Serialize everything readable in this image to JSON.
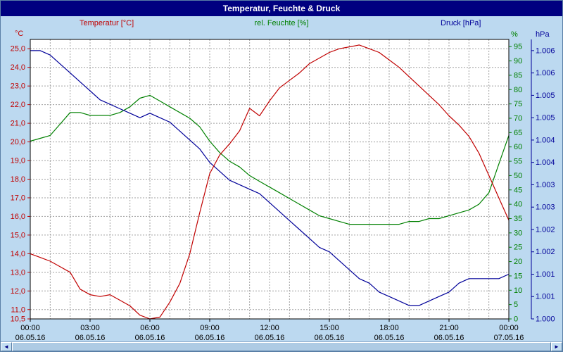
{
  "window": {
    "title": "Temperatur, Feuchte & Druck"
  },
  "legend": {
    "temperature": "Temperatur [°C]",
    "humidity": "rel. Feuchte [%]",
    "pressure": "Druck [hPa]"
  },
  "scrollbar": {
    "left_icon": "◄",
    "right_icon": "►"
  },
  "colors": {
    "titlebar_bg": "#000080",
    "titlebar_text": "#ffffff",
    "page_bg": "#bcd9f0",
    "plot_bg": "#ffffff",
    "grid": "#a0a0a0",
    "axis_border": "#000000",
    "x_label": "#000000",
    "temperature": "#c00000",
    "humidity": "#008000",
    "pressure": "#000099"
  },
  "chart_data": {
    "type": "line",
    "title": "Temperatur, Feuchte & Druck",
    "x_axis": {
      "unit": "time",
      "range_hours": [
        0,
        24
      ],
      "grid_step_hours": 1,
      "major_ticks": [
        {
          "hour": 0,
          "time": "00:00",
          "date": "06.05.16"
        },
        {
          "hour": 3,
          "time": "03:00",
          "date": "06.05.16"
        },
        {
          "hour": 6,
          "time": "06:00",
          "date": "06.05.16"
        },
        {
          "hour": 9,
          "time": "09:00",
          "date": "06.05.16"
        },
        {
          "hour": 12,
          "time": "12:00",
          "date": "06.05.16"
        },
        {
          "hour": 15,
          "time": "15:00",
          "date": "06.05.16"
        },
        {
          "hour": 18,
          "time": "18:00",
          "date": "06.05.16"
        },
        {
          "hour": 21,
          "time": "21:00",
          "date": "06.05.16"
        },
        {
          "hour": 24,
          "time": "00:00",
          "date": "07.05.16"
        }
      ]
    },
    "temp_axis": {
      "unit": "°C",
      "min": 10.5,
      "max": 25.5,
      "color": "#c00000",
      "ticks": [
        {
          "v": 25,
          "t": "25,0"
        },
        {
          "v": 24,
          "t": "24,0"
        },
        {
          "v": 23,
          "t": "23,0"
        },
        {
          "v": 22,
          "t": "22,0"
        },
        {
          "v": 21,
          "t": "21,0"
        },
        {
          "v": 20,
          "t": "20,0"
        },
        {
          "v": 19,
          "t": "19,0"
        },
        {
          "v": 18,
          "t": "18,0"
        },
        {
          "v": 17,
          "t": "17,0"
        },
        {
          "v": 16,
          "t": "16,0"
        },
        {
          "v": 15,
          "t": "15,0"
        },
        {
          "v": 14,
          "t": "14,0"
        },
        {
          "v": 13,
          "t": "13,0"
        },
        {
          "v": 12,
          "t": "12,0"
        },
        {
          "v": 11,
          "t": "11,0"
        },
        {
          "v": 10.5,
          "t": "10,5"
        }
      ]
    },
    "humidity_axis": {
      "unit": "%",
      "min": 0,
      "max": 97.5,
      "color": "#008000",
      "ticks": [
        {
          "v": 95,
          "t": "95"
        },
        {
          "v": 90,
          "t": "90"
        },
        {
          "v": 85,
          "t": "85"
        },
        {
          "v": 80,
          "t": "80"
        },
        {
          "v": 75,
          "t": "75"
        },
        {
          "v": 70,
          "t": "70"
        },
        {
          "v": 65,
          "t": "65"
        },
        {
          "v": 60,
          "t": "60"
        },
        {
          "v": 55,
          "t": "55"
        },
        {
          "v": 50,
          "t": "50"
        },
        {
          "v": 45,
          "t": "45"
        },
        {
          "v": 40,
          "t": "40"
        },
        {
          "v": 35,
          "t": "35"
        },
        {
          "v": 30,
          "t": "30"
        },
        {
          "v": 25,
          "t": "25"
        },
        {
          "v": 20,
          "t": "20"
        },
        {
          "v": 15,
          "t": "15"
        },
        {
          "v": 10,
          "t": "10"
        },
        {
          "v": 5,
          "t": "5"
        },
        {
          "v": 0,
          "t": "0"
        }
      ]
    },
    "pressure_axis": {
      "unit": "hPa",
      "min": 1000,
      "max": 1006.25,
      "color": "#000099",
      "ticks": [
        {
          "v": 1006,
          "t": "1.006"
        },
        {
          "v": 1005.5,
          "t": "1.006"
        },
        {
          "v": 1005,
          "t": "1.005"
        },
        {
          "v": 1004.5,
          "t": "1.005"
        },
        {
          "v": 1004,
          "t": "1.004"
        },
        {
          "v": 1003.5,
          "t": "1.004"
        },
        {
          "v": 1003,
          "t": "1.003"
        },
        {
          "v": 1002.5,
          "t": "1.003"
        },
        {
          "v": 1002,
          "t": "1.002"
        },
        {
          "v": 1001.5,
          "t": "1.002"
        },
        {
          "v": 1001,
          "t": "1.001"
        },
        {
          "v": 1000.5,
          "t": "1.001"
        },
        {
          "v": 1000,
          "t": "1.000"
        }
      ]
    },
    "series": [
      {
        "name": "Temperatur [°C]",
        "axis": "temp",
        "color": "#c00000",
        "points": [
          [
            0,
            14.0
          ],
          [
            0.5,
            13.8
          ],
          [
            1,
            13.6
          ],
          [
            1.5,
            13.3
          ],
          [
            2,
            13.0
          ],
          [
            2.5,
            12.1
          ],
          [
            3,
            11.8
          ],
          [
            3.5,
            11.7
          ],
          [
            4,
            11.8
          ],
          [
            4.5,
            11.5
          ],
          [
            5,
            11.2
          ],
          [
            5.5,
            10.7
          ],
          [
            6,
            10.5
          ],
          [
            6.5,
            10.6
          ],
          [
            7,
            11.4
          ],
          [
            7.5,
            12.4
          ],
          [
            8,
            14.0
          ],
          [
            8.5,
            16.2
          ],
          [
            9,
            18.3
          ],
          [
            9.5,
            19.3
          ],
          [
            10,
            19.9
          ],
          [
            10.5,
            20.6
          ],
          [
            11,
            21.8
          ],
          [
            11.5,
            21.4
          ],
          [
            12,
            22.2
          ],
          [
            12.5,
            22.9
          ],
          [
            13,
            23.3
          ],
          [
            13.5,
            23.7
          ],
          [
            14,
            24.2
          ],
          [
            14.5,
            24.5
          ],
          [
            15,
            24.8
          ],
          [
            15.5,
            25.0
          ],
          [
            16,
            25.1
          ],
          [
            16.5,
            25.2
          ],
          [
            17,
            25.0
          ],
          [
            17.5,
            24.8
          ],
          [
            18,
            24.4
          ],
          [
            18.5,
            24.0
          ],
          [
            19,
            23.5
          ],
          [
            19.5,
            23.0
          ],
          [
            20,
            22.5
          ],
          [
            20.5,
            22.0
          ],
          [
            21,
            21.4
          ],
          [
            21.5,
            20.9
          ],
          [
            22,
            20.3
          ],
          [
            22.5,
            19.4
          ],
          [
            23,
            18.2
          ],
          [
            23.5,
            17.0
          ],
          [
            24,
            15.8
          ]
        ]
      },
      {
        "name": "rel. Feuchte [%]",
        "axis": "humidity",
        "color": "#008000",
        "points": [
          [
            0,
            62
          ],
          [
            0.5,
            63
          ],
          [
            1,
            64
          ],
          [
            1.5,
            68
          ],
          [
            2,
            72
          ],
          [
            2.5,
            72
          ],
          [
            3,
            71
          ],
          [
            3.5,
            71
          ],
          [
            4,
            71
          ],
          [
            4.5,
            72
          ],
          [
            5,
            74
          ],
          [
            5.5,
            77
          ],
          [
            6,
            78
          ],
          [
            6.5,
            76
          ],
          [
            7,
            74
          ],
          [
            7.5,
            72
          ],
          [
            8,
            70
          ],
          [
            8.5,
            67
          ],
          [
            9,
            62
          ],
          [
            9.5,
            58
          ],
          [
            10,
            55
          ],
          [
            10.5,
            53
          ],
          [
            11,
            50
          ],
          [
            11.5,
            48
          ],
          [
            12,
            46
          ],
          [
            12.5,
            44
          ],
          [
            13,
            42
          ],
          [
            13.5,
            40
          ],
          [
            14,
            38
          ],
          [
            14.5,
            36
          ],
          [
            15,
            35
          ],
          [
            15.5,
            34
          ],
          [
            16,
            33
          ],
          [
            16.5,
            33
          ],
          [
            17,
            33
          ],
          [
            17.5,
            33
          ],
          [
            18,
            33
          ],
          [
            18.5,
            33
          ],
          [
            19,
            34
          ],
          [
            19.5,
            34
          ],
          [
            20,
            35
          ],
          [
            20.5,
            35
          ],
          [
            21,
            36
          ],
          [
            21.5,
            37
          ],
          [
            22,
            38
          ],
          [
            22.5,
            40
          ],
          [
            23,
            44
          ],
          [
            23.5,
            54
          ],
          [
            24,
            64
          ]
        ]
      },
      {
        "name": "Druck [hPa]",
        "axis": "pressure",
        "color": "#000099",
        "points": [
          [
            0,
            1006.0
          ],
          [
            0.5,
            1006.0
          ],
          [
            1,
            1005.9
          ],
          [
            1.5,
            1005.7
          ],
          [
            2,
            1005.5
          ],
          [
            2.5,
            1005.3
          ],
          [
            3,
            1005.1
          ],
          [
            3.5,
            1004.9
          ],
          [
            4,
            1004.8
          ],
          [
            4.5,
            1004.7
          ],
          [
            5,
            1004.6
          ],
          [
            5.5,
            1004.5
          ],
          [
            6,
            1004.6
          ],
          [
            6.5,
            1004.5
          ],
          [
            7,
            1004.4
          ],
          [
            7.5,
            1004.2
          ],
          [
            8,
            1004.0
          ],
          [
            8.5,
            1003.8
          ],
          [
            9,
            1003.5
          ],
          [
            9.5,
            1003.3
          ],
          [
            10,
            1003.1
          ],
          [
            10.5,
            1003.0
          ],
          [
            11,
            1002.9
          ],
          [
            11.5,
            1002.8
          ],
          [
            12,
            1002.6
          ],
          [
            12.5,
            1002.4
          ],
          [
            13,
            1002.2
          ],
          [
            13.5,
            1002.0
          ],
          [
            14,
            1001.8
          ],
          [
            14.5,
            1001.6
          ],
          [
            15,
            1001.5
          ],
          [
            15.5,
            1001.3
          ],
          [
            16,
            1001.1
          ],
          [
            16.5,
            1000.9
          ],
          [
            17,
            1000.8
          ],
          [
            17.5,
            1000.6
          ],
          [
            18,
            1000.5
          ],
          [
            18.5,
            1000.4
          ],
          [
            19,
            1000.3
          ],
          [
            19.5,
            1000.3
          ],
          [
            20,
            1000.4
          ],
          [
            20.5,
            1000.5
          ],
          [
            21,
            1000.6
          ],
          [
            21.5,
            1000.8
          ],
          [
            22,
            1000.9
          ],
          [
            22.5,
            1000.9
          ],
          [
            23,
            1000.9
          ],
          [
            23.5,
            1000.9
          ],
          [
            24,
            1001.0
          ]
        ]
      }
    ]
  }
}
